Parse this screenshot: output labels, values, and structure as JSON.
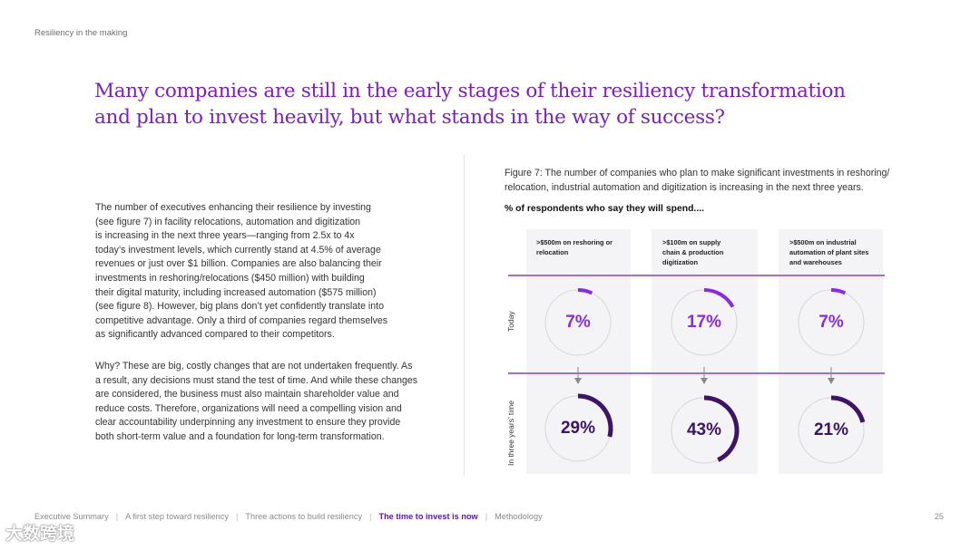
{
  "section_label": "Resiliency in the making",
  "headline": {
    "line1": "Many companies are still in the early stages of their resiliency transformation",
    "line2": "and plan to invest heavily, but what stands in the way of success?"
  },
  "body": {
    "para1": [
      "The number of executives enhancing their resilience by investing",
      "(see figure 7) in facility relocations, automation and digitization",
      "is increasing in the next three years—ranging from 2.5x to 4x",
      "today’s investment levels, which currently stand at 4.5% of average",
      "revenues or just over $1 billion. Companies are also balancing their",
      "investments in reshoring/relocations ($450 million) with building",
      "their digital maturity, including increased automation ($575 million)",
      "(see figure 8). However, big plans don’t yet confidently translate into",
      "competitive advantage. Only a third of companies regard themselves",
      "as significantly advanced compared to their competitors."
    ],
    "para2": [
      "Why? These are big, costly changes that are not undertaken frequently. As",
      "a result, any decisions must stand the test of time. And while these changes",
      "are considered, the business must also maintain shareholder value and",
      "reduce costs. Therefore, organizations will need a compelling vision and",
      "clear accountability underpinning any investment to ensure they provide",
      "both short-term value and a foundation for long-term transformation."
    ]
  },
  "figure": {
    "caption": [
      "Figure 7:  The number of companies who plan to make significant investments in reshoring/",
      "relocation, industrial automation and digitization is increasing in the next three years."
    ],
    "subtitle": "% of respondents who say they will spend...."
  },
  "chart_data": {
    "type": "donut-grid",
    "title": "% of respondents who say they will spend....",
    "rows": [
      "Today",
      "In three years’ time"
    ],
    "columns": [
      {
        "label_lines": [
          ">$500m on reshoring or",
          "relocation"
        ],
        "today": 7,
        "future": 29
      },
      {
        "label_lines": [
          ">$100m on supply",
          "chain & production",
          "digitization"
        ],
        "today": 17,
        "future": 43
      },
      {
        "label_lines": [
          ">$500m on industrial",
          "automation of plant sites",
          "and warehouses"
        ],
        "today": 7,
        "future": 21
      }
    ],
    "values_today": [
      "7%",
      "17%",
      "7%"
    ],
    "values_future": [
      "29%",
      "43%",
      "21%"
    ],
    "unit": "%",
    "colors": {
      "today": "#8a2be2",
      "future": "#3d1466",
      "track": "#d6d6d6"
    }
  },
  "footer": {
    "items": [
      "Executive Summary",
      "A first step toward resiliency",
      "Three actions to build resiliency",
      "The time to invest is now",
      "Methodology"
    ],
    "active_index": 3,
    "separator": "|",
    "page_number": "25"
  },
  "watermark": "大数跨境"
}
